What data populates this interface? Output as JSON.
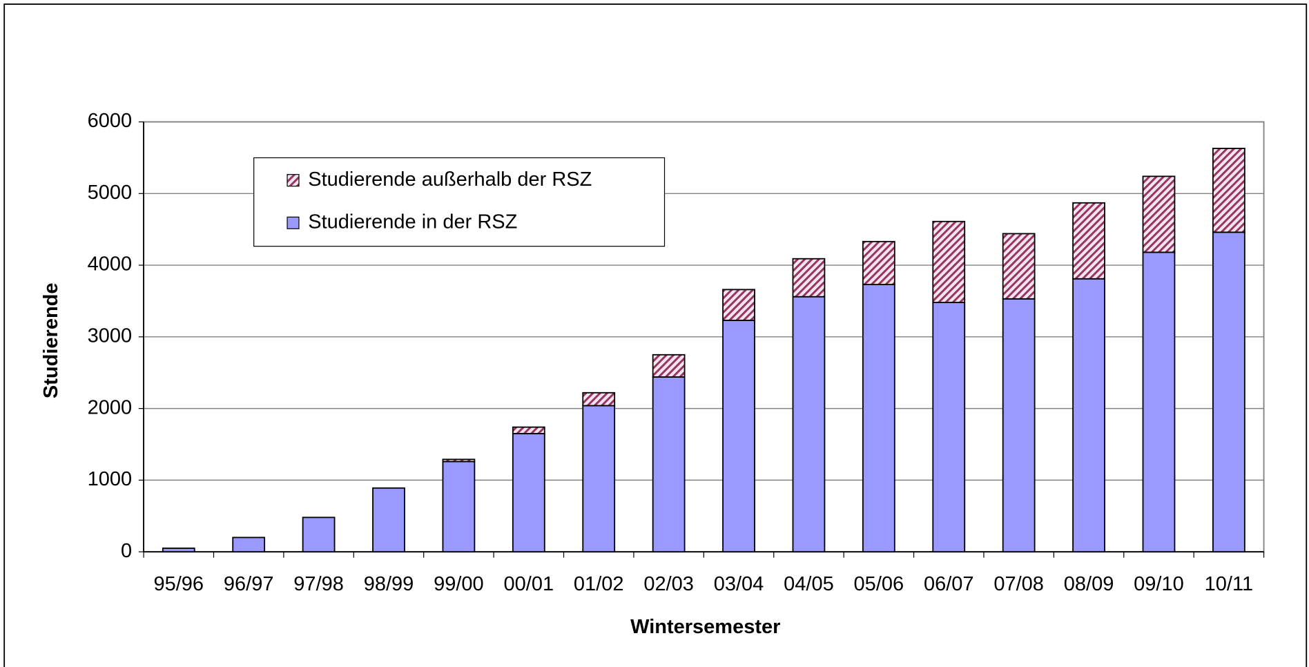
{
  "chart_data": {
    "type": "stacked_bar",
    "x_label": "Wintersemester",
    "y_label": "Studierende",
    "categories": [
      "95/96",
      "96/97",
      "97/98",
      "98/99",
      "99/00",
      "00/01",
      "01/02",
      "02/03",
      "03/04",
      "04/05",
      "05/06",
      "06/07",
      "07/08",
      "08/09",
      "09/10",
      "10/11"
    ],
    "series": [
      {
        "name": "Studierende in der RSZ",
        "color": "#9999ff",
        "values": [
          50,
          200,
          480,
          890,
          1260,
          1650,
          2040,
          2440,
          3230,
          3560,
          3730,
          3480,
          3530,
          3810,
          4180,
          4460
        ]
      },
      {
        "name": "Studierende außerhalb der RSZ",
        "color": "#993366",
        "values": [
          0,
          0,
          0,
          0,
          30,
          90,
          180,
          310,
          430,
          530,
          600,
          1130,
          910,
          1060,
          1060,
          1170
        ]
      }
    ],
    "ylim": [
      0,
      6000
    ],
    "yticks": [
      0,
      1000,
      2000,
      3000,
      4000,
      5000,
      6000
    ],
    "grid": true,
    "legend": "upper left"
  }
}
